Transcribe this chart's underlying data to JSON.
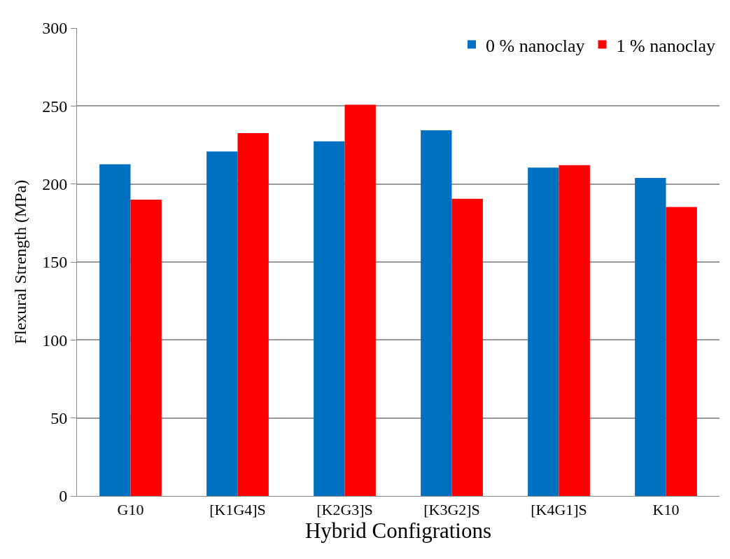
{
  "chart_data": {
    "type": "bar",
    "xlabel": "Hybrid Configrations",
    "ylabel": "Flexural Strength (MPa)",
    "categories": [
      "G10",
      "[K1G4]S",
      "[K2G3]S",
      "[K3G2]S",
      "[K4G1]S",
      "K10"
    ],
    "series": [
      {
        "name": "0 % nanoclay",
        "color": "#0070c0",
        "values": [
          212.6,
          220.8,
          227.4,
          234.4,
          210.5,
          203.9
        ]
      },
      {
        "name": "1 % nanoclay",
        "color": "#ff0000",
        "values": [
          190,
          232.6,
          250.8,
          190.5,
          212.1,
          185.3
        ]
      }
    ],
    "ylim": [
      0,
      300
    ],
    "yticks": [
      0,
      50,
      100,
      150,
      200,
      250,
      300
    ],
    "grid": "y",
    "legend": "top right"
  }
}
